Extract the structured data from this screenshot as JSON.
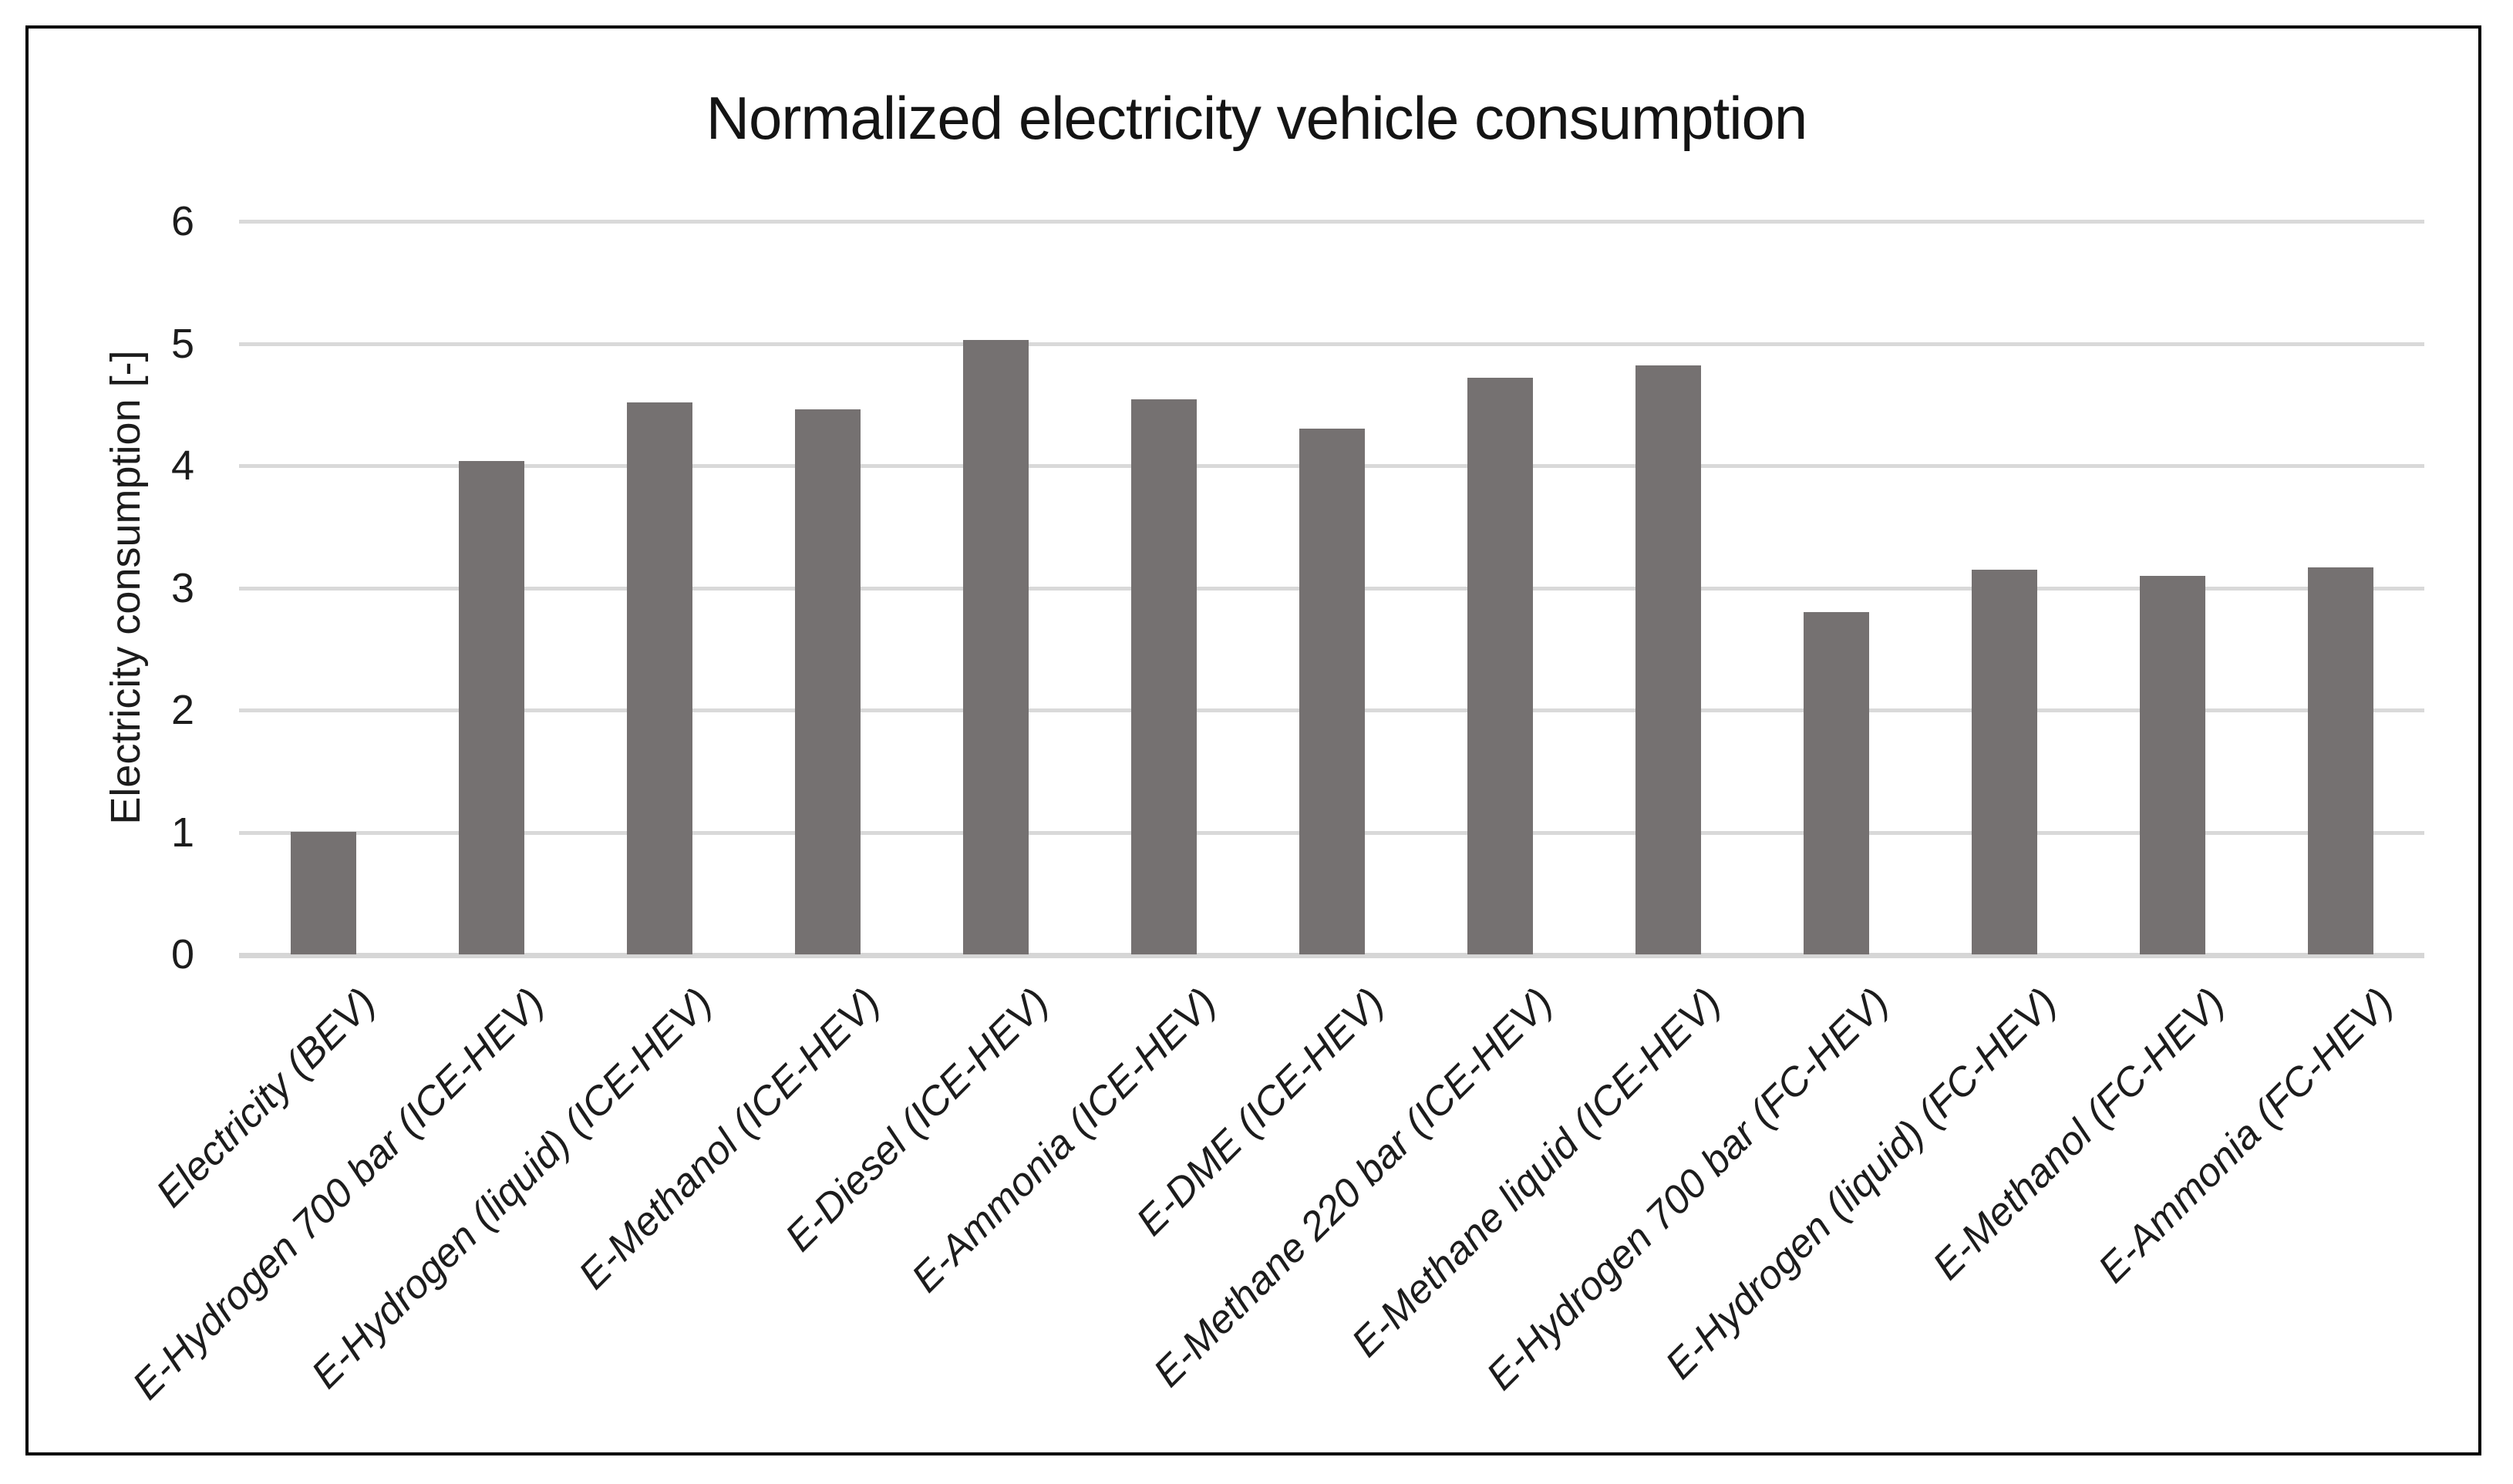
{
  "chart_data": {
    "type": "bar",
    "title": "Normalized electricity vehicle consumption",
    "xlabel": "",
    "ylabel": "Electricity consumption [-]",
    "categories": [
      "Electricity (BEV)",
      "E-Hydrogen 700 bar (ICE-HEV)",
      "E-Hydrogen (liquid) (ICE-HEV)",
      "E-Methanol (ICE-HEV)",
      "E-Diesel (ICE-HEV)",
      "E-Ammonia (ICE-HEV)",
      "E-DME (ICE-HEV)",
      "E-Methane 220 bar (ICE-HEV)",
      "E-Methane liquid (ICE-HEV)",
      "E-Hydrogen 700 bar (FC-HEV)",
      "E-Hydrogen (liquid) (FC-HEV)",
      "E-Methanol (FC-HEV)",
      "E-Ammonia (FC-HEV)"
    ],
    "values": [
      1.0,
      4.04,
      4.52,
      4.46,
      5.03,
      4.54,
      4.3,
      4.72,
      4.82,
      2.8,
      3.15,
      3.1,
      3.17
    ],
    "ylim": [
      0,
      6
    ],
    "yticks": [
      0,
      1,
      2,
      3,
      4,
      5,
      6
    ],
    "grid": true,
    "legend": false,
    "bar_color": "#757171",
    "gridline_color": "#d9d9d9",
    "axis_line_color": "#d6d6d6",
    "text_color": "#1c1c1c",
    "title_color": "#141414"
  }
}
